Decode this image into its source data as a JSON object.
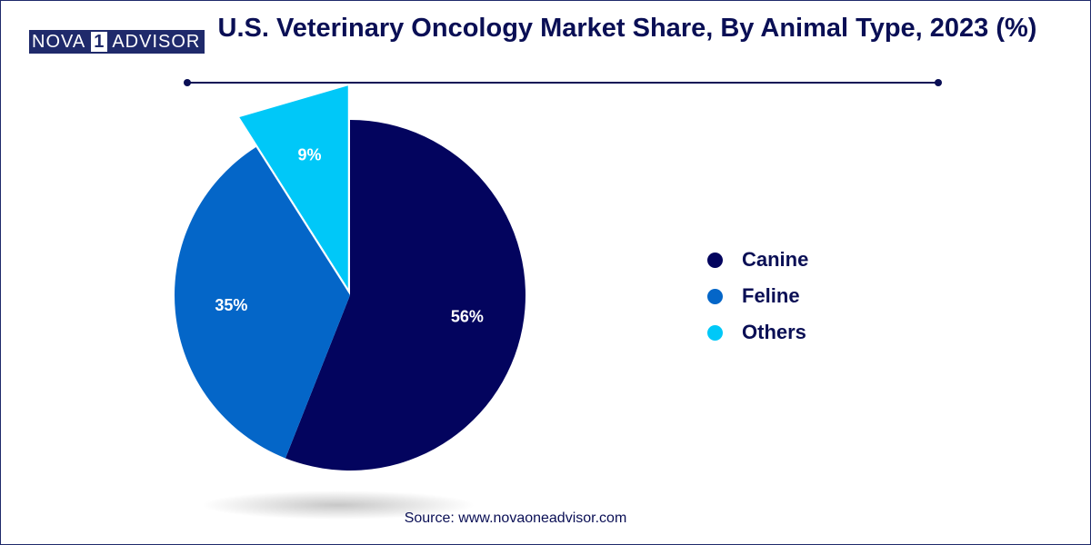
{
  "logo": {
    "part1": "NOVA",
    "part2": "1",
    "part3": "ADVISOR"
  },
  "chart_data": {
    "type": "pie",
    "title": "U.S. Veterinary Oncology Market Share, By Animal Type, 2023 (%)",
    "slices": [
      {
        "label": "Canine",
        "value": 56,
        "data_label": "56%",
        "color": "#03045e"
      },
      {
        "label": "Feline",
        "value": 35,
        "data_label": "35%",
        "color": "#0466c8"
      },
      {
        "label": "Others",
        "value": 9,
        "data_label": "9%",
        "color": "#00c8f8"
      }
    ],
    "legend_position": "right",
    "exploded_slice": "Others"
  },
  "source": "Source: www.novaoneadvisor.com"
}
